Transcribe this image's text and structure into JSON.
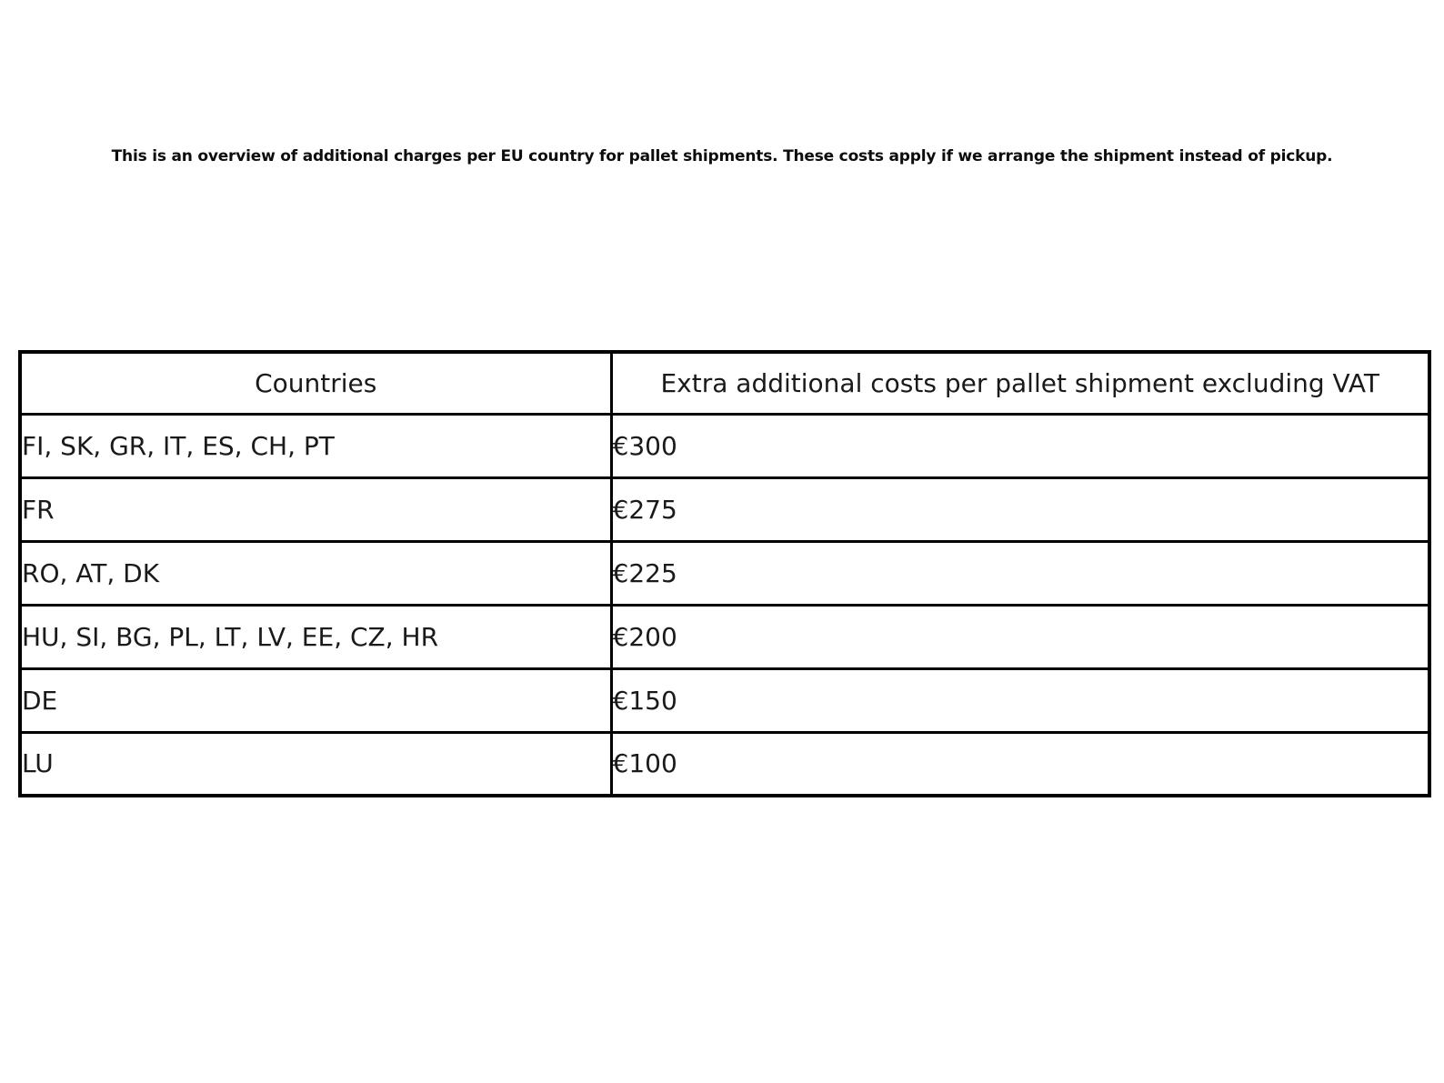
{
  "intro": {
    "text": "This is an overview of additional charges per EU country for pallet shipments. These costs apply if we arrange the shipment instead of pickup."
  },
  "table": {
    "columns": [
      "Countries",
      "Extra additional costs per pallet shipment excluding VAT"
    ],
    "rows": [
      {
        "countries": "FI, SK, GR, IT, ES, CH, PT",
        "cost": "€300"
      },
      {
        "countries": "FR",
        "cost": "€275"
      },
      {
        "countries": "RO, AT, DK",
        "cost": "€225"
      },
      {
        "countries": "HU, SI, BG, PL, LT, LV, EE, CZ, HR",
        "cost": "€200"
      },
      {
        "countries": "DE",
        "cost": "€150"
      },
      {
        "countries": "LU",
        "cost": "€100"
      }
    ]
  },
  "colors": {
    "background": "#ffffff",
    "border": "#000000",
    "text": "#1a1a1a"
  }
}
